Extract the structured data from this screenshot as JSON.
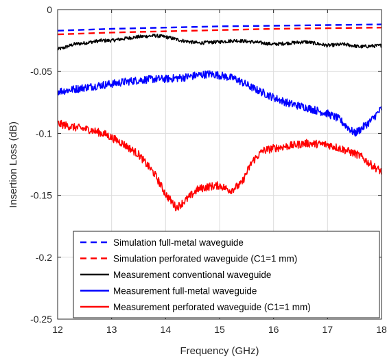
{
  "chart_data": {
    "type": "line",
    "xlabel": "Frequency (GHz)",
    "ylabel": "Insertion Loss (dB)",
    "xlim": [
      12,
      18
    ],
    "ylim": [
      -0.25,
      0
    ],
    "xticks": [
      12,
      13,
      14,
      15,
      16,
      17,
      18
    ],
    "yticks": [
      0,
      -0.05,
      -0.1,
      -0.15,
      -0.2,
      -0.25
    ],
    "ytick_labels": [
      "0",
      "-0.05",
      "-0.1",
      "-0.15",
      "-0.2",
      "-0.25"
    ],
    "grid": true,
    "legend_position": "bottom-right",
    "series": [
      {
        "name": "Simulation full-metal waveguide",
        "color": "#0000ff",
        "style": "dashed",
        "x": [
          12,
          13,
          14,
          15,
          16,
          17,
          18
        ],
        "y": [
          -0.017,
          -0.0155,
          -0.0145,
          -0.0135,
          -0.013,
          -0.0125,
          -0.012
        ]
      },
      {
        "name": "Simulation perforated waveguide (C1=1 mm)",
        "color": "#ff0000",
        "style": "dashed",
        "x": [
          12,
          13,
          14,
          15,
          16,
          17,
          18
        ],
        "y": [
          -0.02,
          -0.0185,
          -0.0175,
          -0.0165,
          -0.0155,
          -0.015,
          -0.0145
        ]
      },
      {
        "name": "Measurement conventional waveguide",
        "color": "#000000",
        "style": "solid",
        "x": [
          12,
          12.1,
          12.3,
          12.5,
          12.8,
          13,
          13.3,
          13.5,
          13.8,
          14,
          14.3,
          14.6,
          15,
          15.3,
          15.6,
          16,
          16.3,
          16.6,
          17,
          17.3,
          17.6,
          18
        ],
        "y": [
          -0.032,
          -0.031,
          -0.028,
          -0.027,
          -0.025,
          -0.025,
          -0.023,
          -0.022,
          -0.021,
          -0.022,
          -0.025,
          -0.027,
          -0.026,
          -0.025,
          -0.026,
          -0.028,
          -0.027,
          -0.026,
          -0.029,
          -0.028,
          -0.03,
          -0.029
        ]
      },
      {
        "name": "Measurement full-metal waveguide",
        "color": "#0000ff",
        "style": "solid",
        "x": [
          12,
          12.2,
          12.5,
          12.8,
          13,
          13.3,
          13.5,
          13.8,
          14,
          14.3,
          14.6,
          14.8,
          15,
          15.3,
          15.6,
          16,
          16.3,
          16.6,
          17,
          17.2,
          17.4,
          17.5,
          17.6,
          17.8,
          18
        ],
        "y": [
          -0.066,
          -0.065,
          -0.063,
          -0.061,
          -0.06,
          -0.058,
          -0.057,
          -0.056,
          -0.056,
          -0.055,
          -0.053,
          -0.052,
          -0.053,
          -0.056,
          -0.063,
          -0.071,
          -0.076,
          -0.079,
          -0.084,
          -0.088,
          -0.096,
          -0.1,
          -0.097,
          -0.09,
          -0.08
        ]
      },
      {
        "name": "Measurement perforated waveguide (C1=1 mm)",
        "color": "#ff0000",
        "style": "solid",
        "x": [
          12,
          12.3,
          12.6,
          12.9,
          13.2,
          13.5,
          13.8,
          14,
          14.2,
          14.4,
          14.6,
          14.8,
          15,
          15.2,
          15.4,
          15.6,
          15.8,
          16,
          16.3,
          16.6,
          17,
          17.3,
          17.6,
          17.8,
          18
        ],
        "y": [
          -0.092,
          -0.095,
          -0.097,
          -0.101,
          -0.108,
          -0.117,
          -0.133,
          -0.149,
          -0.16,
          -0.153,
          -0.145,
          -0.143,
          -0.142,
          -0.146,
          -0.141,
          -0.123,
          -0.114,
          -0.112,
          -0.11,
          -0.108,
          -0.109,
          -0.113,
          -0.118,
          -0.125,
          -0.131
        ]
      }
    ]
  }
}
